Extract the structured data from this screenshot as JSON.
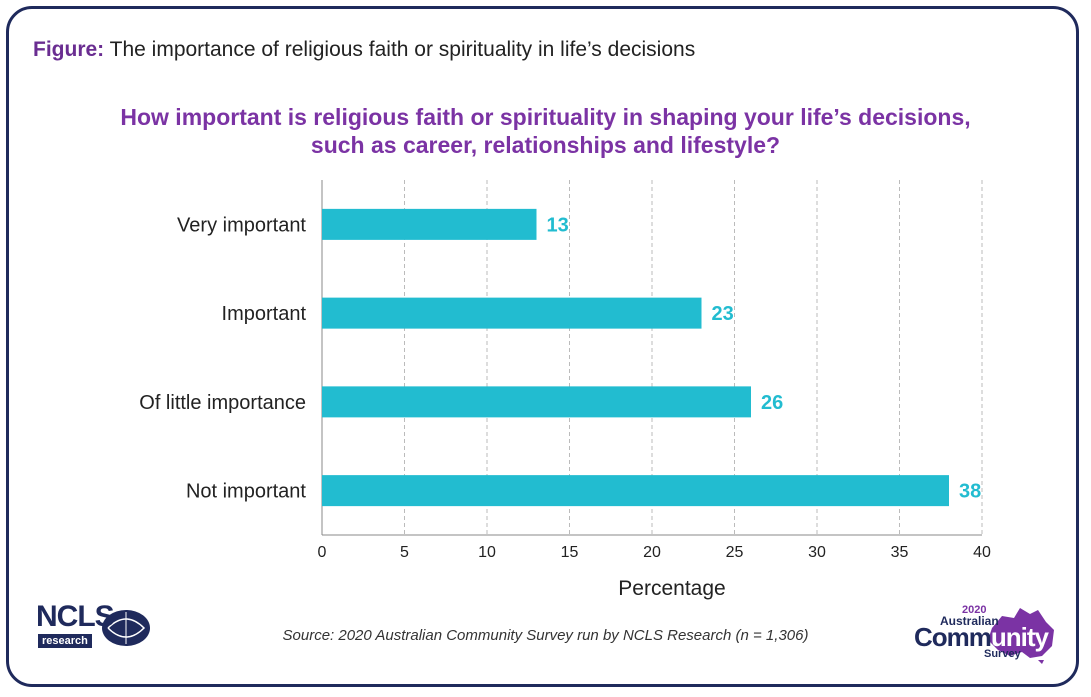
{
  "figure": {
    "prefix": "Figure:",
    "title": "The importance of religious faith or spirituality in life’s decisions"
  },
  "question": {
    "line1": "How important is religious faith or spirituality in shaping your life’s decisions,",
    "line2": "such as career, relationships and lifestyle?"
  },
  "source": "Source: 2020 Australian Community Survey run by NCLS Research (n = 1,306)",
  "logos": {
    "ncls": "NCLS",
    "ncls_sub": "research",
    "acs_year": "2020",
    "acs_line1": "Australian",
    "acs_comm": "Comm",
    "acs_unity": "unity",
    "acs_survey": "Survey"
  },
  "colors": {
    "bar": "#22bcd0",
    "label": "#22bcd0",
    "grid": "#bbbbbb",
    "purple": "#7b33a4",
    "navy": "#1f2a5c"
  },
  "chart_data": {
    "type": "bar",
    "orientation": "horizontal",
    "categories": [
      "Very important",
      "Important",
      "Of little importance",
      "Not important"
    ],
    "values": [
      13,
      23,
      26,
      38
    ],
    "data_labels": [
      "13",
      "23",
      "26",
      "38"
    ],
    "title": "How important is religious faith or spirituality in shaping your life’s decisions, such as career, relationships and lifestyle?",
    "xlabel": "Percentage",
    "ylabel": "",
    "xlim": [
      0,
      40
    ],
    "xticks": [
      0,
      5,
      10,
      15,
      20,
      25,
      30,
      35,
      40
    ],
    "grid": "vertical dashed",
    "legend": "none"
  }
}
